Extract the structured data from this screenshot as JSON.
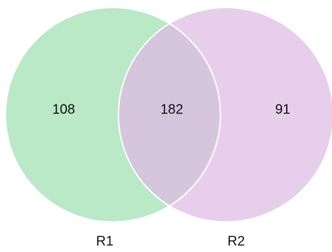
{
  "chart_data": {
    "type": "venn",
    "sets": [
      {
        "name": "R1",
        "only": 108,
        "color": "#b9e9c6"
      },
      {
        "name": "R2",
        "only": 91,
        "color": "#e7cfec"
      }
    ],
    "intersection": {
      "value": 182,
      "color": "#d5c6de"
    },
    "edge_color": "#ffffff"
  }
}
